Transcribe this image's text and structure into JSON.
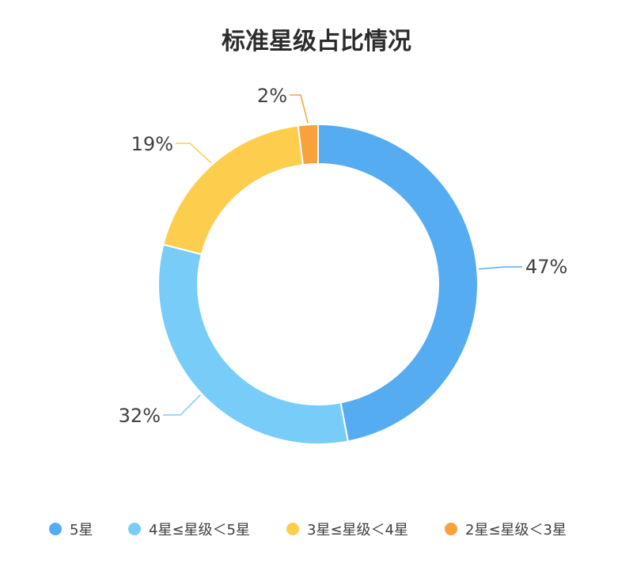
{
  "chart_data": {
    "type": "pie",
    "title": "标准星级占比情况",
    "categories": [
      "5星",
      "4星≤星级＜5星",
      "3星≤星级＜4星",
      "2星≤星级＜3星"
    ],
    "values": [
      47,
      32,
      19,
      2
    ],
    "value_labels": [
      "47%",
      "32%",
      "19%",
      "2%"
    ],
    "colors": [
      "#56acf1",
      "#78cdf8",
      "#fdcd4d",
      "#f7a23a"
    ],
    "donut": true,
    "legend_position": "bottom"
  }
}
